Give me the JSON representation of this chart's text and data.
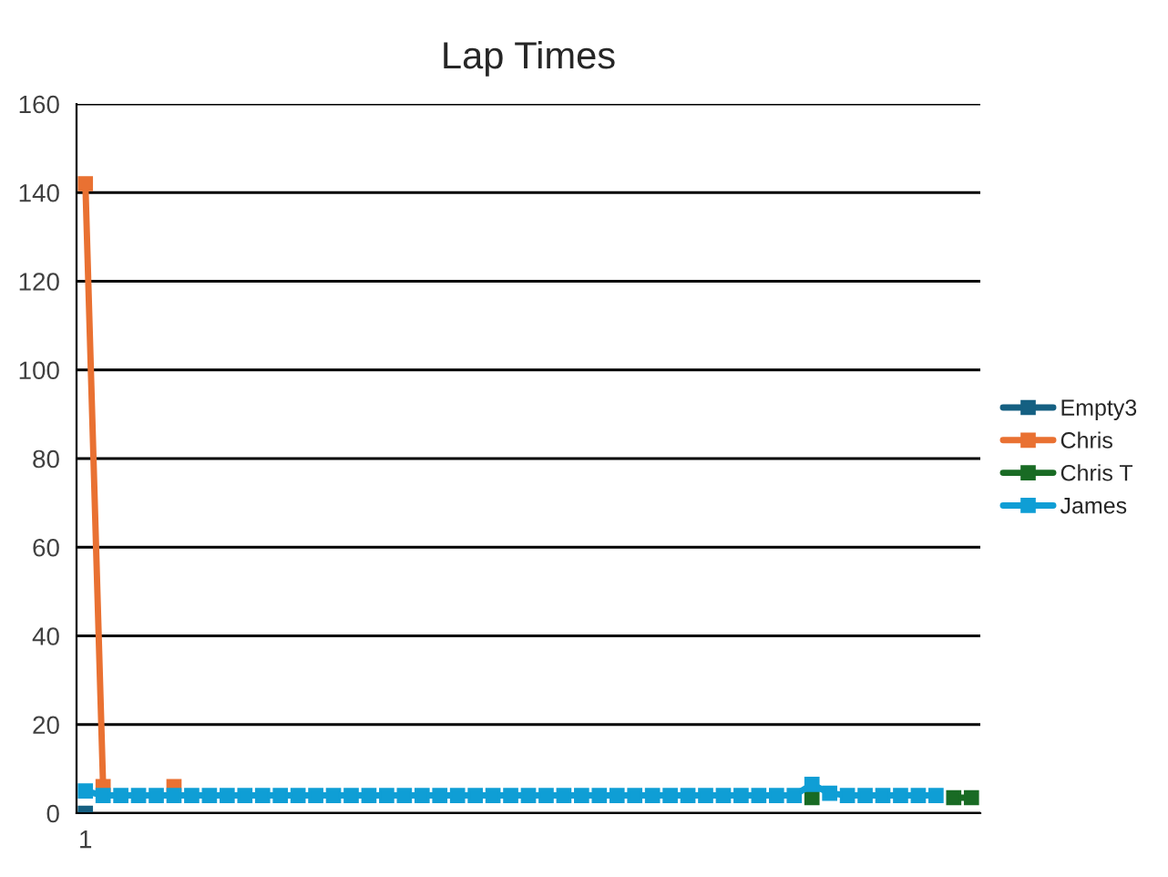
{
  "chart_data": {
    "type": "line",
    "title": "Lap Times",
    "categories": [
      "1",
      null,
      null,
      null,
      null,
      null,
      null,
      null,
      null,
      null,
      null,
      null,
      null,
      null,
      null,
      null,
      null,
      null,
      null,
      null,
      null,
      null,
      null,
      null,
      null,
      null,
      null,
      null,
      null,
      null,
      null,
      null,
      null,
      null,
      null,
      null,
      null,
      null,
      null,
      null,
      null,
      null,
      null,
      null,
      null,
      null,
      null,
      null,
      null,
      null,
      null
    ],
    "series": [
      {
        "name": "Empty3",
        "color": "#156082",
        "values": [
          0,
          null,
          null,
          null,
          null,
          null,
          null,
          null,
          null,
          null,
          null,
          null,
          null,
          null,
          null,
          null,
          null,
          null,
          null,
          null,
          null,
          null,
          null,
          null,
          null,
          null,
          null,
          null,
          null,
          null,
          null,
          null,
          null,
          null,
          null,
          null,
          null,
          null,
          null,
          null,
          null,
          null,
          null,
          null,
          null,
          null,
          null,
          null,
          null,
          null,
          null
        ]
      },
      {
        "name": "Chris",
        "color": "#e97132",
        "values": [
          142,
          6,
          null,
          null,
          null,
          6,
          null,
          null,
          null,
          null,
          null,
          null,
          null,
          null,
          null,
          null,
          null,
          null,
          null,
          null,
          null,
          null,
          null,
          null,
          null,
          null,
          null,
          null,
          null,
          null,
          null,
          null,
          null,
          null,
          null,
          null,
          null,
          null,
          null,
          null,
          null,
          null,
          null,
          null,
          null,
          null,
          null,
          null,
          null,
          null,
          null
        ]
      },
      {
        "name": "Chris T",
        "color": "#196b24",
        "values": [
          null,
          null,
          null,
          null,
          null,
          null,
          null,
          null,
          null,
          null,
          null,
          null,
          null,
          null,
          null,
          null,
          null,
          null,
          null,
          null,
          null,
          null,
          null,
          null,
          null,
          null,
          null,
          null,
          null,
          null,
          null,
          null,
          null,
          null,
          null,
          null,
          null,
          null,
          null,
          null,
          null,
          3.5,
          null,
          null,
          null,
          null,
          null,
          null,
          null,
          3.5,
          3.5
        ]
      },
      {
        "name": "James",
        "color": "#0f9ed5",
        "values": [
          5,
          4,
          4,
          4,
          4,
          4,
          4,
          4,
          4,
          4,
          4,
          4,
          4,
          4,
          4,
          4,
          4,
          4,
          4,
          4,
          4,
          4,
          4,
          4,
          4,
          4,
          4,
          4,
          4,
          4,
          4,
          4,
          4,
          4,
          4,
          4,
          4,
          4,
          4,
          4,
          4,
          6.5,
          4.5,
          4,
          4,
          4,
          4,
          4,
          4,
          null,
          null
        ]
      }
    ],
    "ylim": [
      0,
      160
    ],
    "yticks": [
      0,
      20,
      40,
      60,
      80,
      100,
      120,
      140,
      160
    ],
    "grid": "y",
    "legend": "right",
    "marker": "square",
    "line_style": "solid"
  }
}
